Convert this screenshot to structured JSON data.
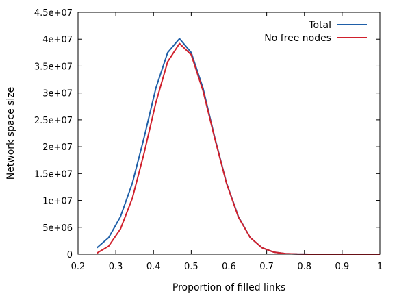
{
  "chart_data": {
    "type": "line",
    "xlabel": "Proportion of filled links",
    "ylabel": "Network space size",
    "xlim": [
      0.2,
      1.0
    ],
    "ylim": [
      0,
      45000000
    ],
    "xticks": [
      0.2,
      0.3,
      0.4,
      0.5,
      0.6,
      0.7,
      0.8,
      0.9,
      1.0
    ],
    "xtick_labels": [
      "0.2",
      "0.3",
      "0.4",
      "0.5",
      "0.6",
      "0.7",
      "0.8",
      "0.9",
      "1"
    ],
    "yticks": [
      0,
      5000000,
      10000000,
      15000000,
      20000000,
      25000000,
      30000000,
      35000000,
      40000000,
      45000000
    ],
    "ytick_labels": [
      "0",
      "5e+06",
      "1e+07",
      "1.5e+07",
      "2e+07",
      "2.5e+07",
      "3e+07",
      "3.5e+07",
      "4e+07",
      "4.5e+07"
    ],
    "grid": false,
    "legend_position": "top-right",
    "x": [
      0.25,
      0.2813,
      0.3125,
      0.3438,
      0.375,
      0.4063,
      0.4375,
      0.4688,
      0.5,
      0.5313,
      0.5625,
      0.5938,
      0.625,
      0.6563,
      0.6875,
      0.7188,
      0.75,
      0.7813,
      0.8125,
      0.8438,
      0.875,
      0.9063,
      0.9375,
      0.9688,
      1.0
    ],
    "series": [
      {
        "name": "Total",
        "color": "#1f5fa8",
        "values": [
          1200000,
          3100000,
          7000000,
          13200000,
          21700000,
          30900000,
          37500000,
          40100000,
          37500000,
          30900000,
          21700000,
          13200000,
          7000000,
          3100000,
          1200000,
          380000,
          100000,
          20000,
          3000,
          500,
          50,
          0,
          0,
          0,
          0
        ]
      },
      {
        "name": "No free nodes",
        "color": "#d0202c",
        "values": [
          200000,
          1500000,
          4700000,
          10400000,
          18800000,
          28200000,
          35800000,
          39200000,
          37100000,
          30400000,
          21500000,
          13100000,
          6900000,
          3100000,
          1200000,
          380000,
          100000,
          20000,
          3000,
          500,
          50,
          0,
          0,
          0,
          0
        ]
      }
    ]
  }
}
